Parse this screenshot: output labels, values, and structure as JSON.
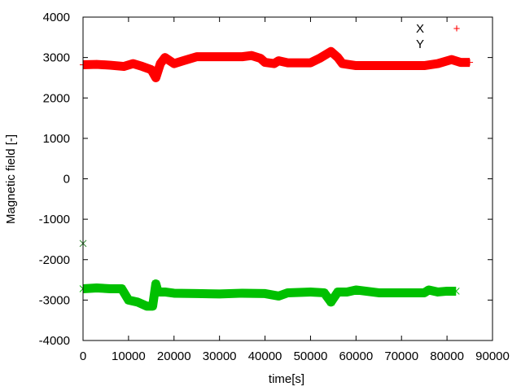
{
  "chart_data": {
    "type": "scatter",
    "title": "",
    "xlabel": "time[s]",
    "ylabel": "Magnetic field [-]",
    "xlim": [
      0,
      90000
    ],
    "ylim": [
      -4000,
      4000
    ],
    "xticks": [
      "0",
      "10000",
      "20000",
      "30000",
      "40000",
      "50000",
      "60000",
      "70000",
      "80000",
      "90000"
    ],
    "yticks": [
      "-4000",
      "-3000",
      "-2000",
      "-1000",
      "0",
      "1000",
      "2000",
      "3000",
      "4000"
    ],
    "grid": false,
    "legend": "top-right",
    "series": [
      {
        "name": "X",
        "color": "#ff0000",
        "marker": "+",
        "x": [
          0,
          3000,
          6000,
          9000,
          11000,
          13000,
          15000,
          16000,
          17000,
          18000,
          20000,
          22000,
          25000,
          30000,
          35000,
          37000,
          39000,
          40000,
          42000,
          43000,
          45000,
          50000,
          52000,
          54500,
          56000,
          57000,
          60000,
          65000,
          70000,
          75000,
          78000,
          81000,
          83000,
          85000
        ],
        "y": [
          2820,
          2830,
          2810,
          2780,
          2850,
          2780,
          2700,
          2500,
          2850,
          3000,
          2850,
          2920,
          3020,
          3020,
          3020,
          3050,
          2980,
          2880,
          2850,
          2920,
          2870,
          2870,
          2980,
          3150,
          3000,
          2850,
          2800,
          2800,
          2800,
          2800,
          2850,
          2950,
          2880,
          2880
        ]
      },
      {
        "name": "Y",
        "color": "#00c000",
        "marker": "x",
        "x": [
          0,
          3000,
          6000,
          8500,
          10000,
          12000,
          14000,
          15300,
          16000,
          16500,
          18000,
          20000,
          25000,
          30000,
          35000,
          40000,
          43000,
          45000,
          50000,
          53000,
          54500,
          56000,
          58000,
          60000,
          65000,
          70000,
          75000,
          76000,
          78000,
          80000,
          82000
        ],
        "y": [
          -2720,
          -2700,
          -2720,
          -2720,
          -3000,
          -3050,
          -3150,
          -3150,
          -2600,
          -2800,
          -2800,
          -2830,
          -2840,
          -2850,
          -2830,
          -2840,
          -2900,
          -2820,
          -2800,
          -2820,
          -3050,
          -2800,
          -2800,
          -2750,
          -2820,
          -2820,
          -2820,
          -2750,
          -2800,
          -2780,
          -2780
        ]
      }
    ],
    "outliers": [
      {
        "x": 0,
        "y": -1600
      }
    ]
  }
}
